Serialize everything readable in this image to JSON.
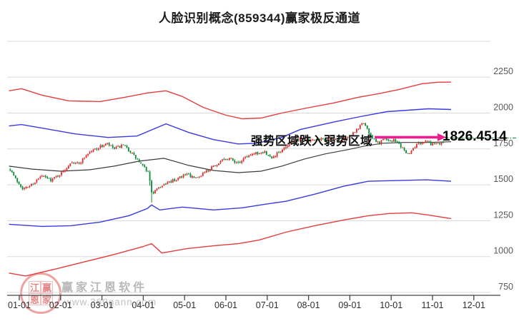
{
  "title": "人脸识别概念(859344)赢家极反通道",
  "annotation": {
    "text": "强势区域跌入弱势区域",
    "value_label": "1826.4514",
    "line_value": 1826.4514
  },
  "watermark": {
    "logo_chars": [
      "江",
      "赢",
      "恩",
      "家"
    ],
    "name": "赢家江恩软件",
    "url": "www.360gann.com"
  },
  "colors": {
    "up_candle": "#dd2b2b",
    "down_candle": "#0a8a38",
    "outer_line": "#e43d3d",
    "inner_line": "#3a3ae0",
    "middle_line": "#3c3c3c",
    "signal_line": "#1e8e46",
    "arrow": "#ea1f8e",
    "grid": "#dadada",
    "axis": "#444444",
    "tick_label": "#2e2e2e",
    "y_label": "#595959"
  },
  "chart_data": {
    "type": "candlestick",
    "title": "人脸识别概念(859344)赢家极反通道",
    "legend": "none",
    "grid": true,
    "x_axis": {
      "tick_labels": [
        "01-01",
        "02-01",
        "03-01",
        "04-01",
        "05-01",
        "06-01",
        "07-01",
        "08-01",
        "09-01",
        "10-01",
        "11-01",
        "12-01"
      ],
      "unit": "month-day",
      "range_months": [
        1,
        12
      ]
    },
    "y_axis": {
      "side": "right",
      "ticks": [
        750,
        1000,
        1250,
        1500,
        1750,
        2000,
        2250
      ],
      "range": [
        660,
        2510
      ]
    },
    "annotation_line_value": 1826.4514,
    "series": {
      "upper_outer_red": {
        "points": [
          [
            0.75,
            2155
          ],
          [
            1.05,
            2170
          ],
          [
            1.55,
            2125
          ],
          [
            2.2,
            2085
          ],
          [
            2.95,
            2080
          ],
          [
            3.55,
            2110
          ],
          [
            4.1,
            2140
          ],
          [
            4.55,
            2155
          ],
          [
            4.95,
            2115
          ],
          [
            5.45,
            2040
          ],
          [
            6.0,
            1985
          ],
          [
            6.4,
            1960
          ],
          [
            6.85,
            1965
          ],
          [
            7.35,
            2000
          ],
          [
            7.95,
            2035
          ],
          [
            8.6,
            2070
          ],
          [
            9.2,
            2110
          ],
          [
            9.7,
            2135
          ],
          [
            10.2,
            2165
          ],
          [
            10.75,
            2205
          ],
          [
            11.15,
            2215
          ],
          [
            11.45,
            2215
          ]
        ]
      },
      "upper_inner_blue": {
        "points": [
          [
            0.75,
            1910
          ],
          [
            1.05,
            1920
          ],
          [
            1.65,
            1890
          ],
          [
            2.35,
            1855
          ],
          [
            3.15,
            1830
          ],
          [
            3.85,
            1840
          ],
          [
            4.55,
            1925
          ],
          [
            5.1,
            1865
          ],
          [
            5.7,
            1815
          ],
          [
            6.3,
            1785
          ],
          [
            6.75,
            1790
          ],
          [
            7.35,
            1830
          ],
          [
            7.8,
            1885
          ],
          [
            8.65,
            1940
          ],
          [
            9.25,
            1975
          ],
          [
            9.9,
            2010
          ],
          [
            10.9,
            2030
          ],
          [
            11.45,
            2025
          ]
        ]
      },
      "middle_black": {
        "points": [
          [
            0.75,
            1630
          ],
          [
            1.3,
            1610
          ],
          [
            2.0,
            1595
          ],
          [
            2.7,
            1605
          ],
          [
            3.3,
            1630
          ],
          [
            3.9,
            1665
          ],
          [
            4.5,
            1685
          ],
          [
            5.1,
            1635
          ],
          [
            5.7,
            1600
          ],
          [
            6.3,
            1585
          ],
          [
            6.85,
            1595
          ],
          [
            7.35,
            1630
          ],
          [
            7.9,
            1680
          ],
          [
            8.4,
            1715
          ],
          [
            8.95,
            1745
          ],
          [
            9.35,
            1770
          ],
          [
            9.8,
            1790
          ],
          [
            10.3,
            1795
          ],
          [
            10.9,
            1795
          ],
          [
            11.45,
            1800
          ]
        ]
      },
      "lower_inner_blue": {
        "points": [
          [
            0.75,
            1225
          ],
          [
            1.55,
            1210
          ],
          [
            2.25,
            1215
          ],
          [
            2.95,
            1240
          ],
          [
            3.65,
            1285
          ],
          [
            4.1,
            1335
          ],
          [
            4.2,
            1360
          ],
          [
            4.4,
            1325
          ],
          [
            4.95,
            1345
          ],
          [
            5.7,
            1325
          ],
          [
            6.4,
            1340
          ],
          [
            6.95,
            1365
          ],
          [
            7.45,
            1385
          ],
          [
            8.15,
            1435
          ],
          [
            8.85,
            1490
          ],
          [
            9.45,
            1525
          ],
          [
            10.15,
            1530
          ],
          [
            10.85,
            1535
          ],
          [
            11.45,
            1525
          ]
        ]
      },
      "lower_outer_red": {
        "points": [
          [
            0.75,
            885
          ],
          [
            1.15,
            865
          ],
          [
            1.9,
            915
          ],
          [
            2.6,
            965
          ],
          [
            3.3,
            1015
          ],
          [
            4.0,
            1070
          ],
          [
            4.2,
            1090
          ],
          [
            4.45,
            1025
          ],
          [
            5.05,
            1055
          ],
          [
            5.7,
            1075
          ],
          [
            6.3,
            1090
          ],
          [
            6.8,
            1115
          ],
          [
            7.45,
            1170
          ],
          [
            8.15,
            1215
          ],
          [
            8.85,
            1255
          ],
          [
            9.45,
            1285
          ],
          [
            9.95,
            1300
          ],
          [
            10.5,
            1305
          ],
          [
            10.9,
            1290
          ],
          [
            11.45,
            1265
          ]
        ]
      }
    },
    "close_price_path": {
      "points": [
        [
          0.78,
          1610
        ],
        [
          0.91,
          1540
        ],
        [
          1.1,
          1470
        ],
        [
          1.31,
          1505
        ],
        [
          1.54,
          1560
        ],
        [
          1.78,
          1535
        ],
        [
          2.06,
          1590
        ],
        [
          2.26,
          1665
        ],
        [
          2.44,
          1645
        ],
        [
          2.64,
          1715
        ],
        [
          2.87,
          1755
        ],
        [
          3.13,
          1785
        ],
        [
          3.3,
          1750
        ],
        [
          3.51,
          1775
        ],
        [
          3.68,
          1735
        ],
        [
          3.91,
          1655
        ],
        [
          4.13,
          1585
        ],
        [
          4.22,
          1420
        ],
        [
          4.3,
          1465
        ],
        [
          4.48,
          1500
        ],
        [
          4.69,
          1525
        ],
        [
          4.89,
          1555
        ],
        [
          5.07,
          1575
        ],
        [
          5.24,
          1540
        ],
        [
          5.46,
          1585
        ],
        [
          5.69,
          1625
        ],
        [
          5.9,
          1665
        ],
        [
          6.1,
          1685
        ],
        [
          6.29,
          1645
        ],
        [
          6.5,
          1700
        ],
        [
          6.73,
          1720
        ],
        [
          6.93,
          1730
        ],
        [
          7.11,
          1685
        ],
        [
          7.32,
          1735
        ],
        [
          7.54,
          1790
        ],
        [
          7.71,
          1815
        ],
        [
          7.89,
          1825
        ],
        [
          8.06,
          1805
        ],
        [
          8.23,
          1825
        ],
        [
          8.41,
          1810
        ],
        [
          8.58,
          1830
        ],
        [
          8.75,
          1800
        ],
        [
          8.89,
          1825
        ],
        [
          9.05,
          1845
        ],
        [
          9.18,
          1890
        ],
        [
          9.32,
          1940
        ],
        [
          9.44,
          1875
        ],
        [
          9.58,
          1815
        ],
        [
          9.7,
          1795
        ],
        [
          9.84,
          1820
        ],
        [
          9.96,
          1795
        ],
        [
          10.08,
          1810
        ],
        [
          10.19,
          1780
        ],
        [
          10.31,
          1740
        ],
        [
          10.43,
          1710
        ],
        [
          10.57,
          1765
        ],
        [
          10.71,
          1795
        ],
        [
          10.83,
          1810
        ],
        [
          10.95,
          1785
        ],
        [
          11.05,
          1795
        ],
        [
          11.16,
          1780
        ],
        [
          11.26,
          1790
        ]
      ]
    },
    "candles": {
      "count": 246,
      "start_month": 0.78,
      "end_month": 11.26,
      "up_color": "#dd2b2b",
      "down_color": "#0a8a38"
    },
    "arrow": {
      "from_month": 9.6,
      "to_month": 11.33,
      "at_value": 1826.4514
    }
  }
}
